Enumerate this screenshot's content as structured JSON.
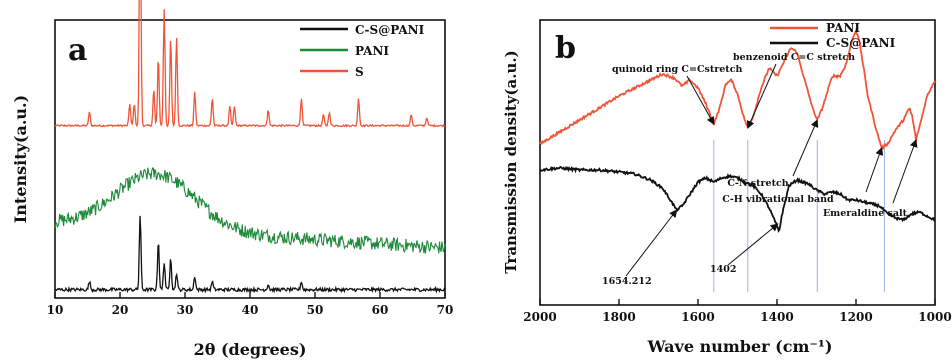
{
  "chart_data": [
    {
      "type": "line",
      "panel_label": "a",
      "xlabel": "2θ (degrees)",
      "ylabel": "Intensity(a.u.)",
      "xlim": [
        10,
        70
      ],
      "x_ticks": [
        10,
        20,
        30,
        40,
        50,
        60,
        70
      ],
      "legend_position": "top-right",
      "colors": {
        "C-S@PANI": "#111111",
        "PANI": "#1d8a3a",
        "S": "#f0553a"
      },
      "series": [
        {
          "name": "S",
          "baseline": 0.62,
          "peaks": [
            [
              15.3,
              0.05
            ],
            [
              21.5,
              0.08
            ],
            [
              22.2,
              0.08
            ],
            [
              23.1,
              0.85
            ],
            [
              25.2,
              0.13
            ],
            [
              25.9,
              0.25
            ],
            [
              26.8,
              0.42
            ],
            [
              27.8,
              0.32
            ],
            [
              28.7,
              0.32
            ],
            [
              31.5,
              0.12
            ],
            [
              34.2,
              0.1
            ],
            [
              36.9,
              0.07
            ],
            [
              37.6,
              0.07
            ],
            [
              42.8,
              0.06
            ],
            [
              47.9,
              0.1
            ],
            [
              51.3,
              0.04
            ],
            [
              52.2,
              0.05
            ],
            [
              56.7,
              0.1
            ],
            [
              64.8,
              0.04
            ],
            [
              67.2,
              0.03
            ]
          ]
        },
        {
          "name": "PANI",
          "form": "broad amorphous hump",
          "baseline_start": 0.27,
          "baseline_end": 0.18,
          "hump_center": 25.5,
          "hump_height": 0.2
        },
        {
          "name": "C-S@PANI",
          "baseline": 0.03,
          "peaks": [
            [
              15.3,
              0.03
            ],
            [
              23.1,
              0.27
            ],
            [
              25.9,
              0.18
            ],
            [
              26.8,
              0.1
            ],
            [
              27.8,
              0.12
            ],
            [
              28.7,
              0.06
            ],
            [
              31.5,
              0.05
            ],
            [
              34.2,
              0.03
            ],
            [
              42.8,
              0.02
            ],
            [
              47.9,
              0.03
            ]
          ]
        }
      ]
    },
    {
      "type": "line",
      "panel_label": "b",
      "xlabel": "Wave number (cm⁻¹)",
      "ylabel": "Transmission density(a.u.)",
      "xlim": [
        2000,
        1000
      ],
      "x_reversed": true,
      "x_ticks": [
        2000,
        1800,
        1600,
        1400,
        1200,
        1000
      ],
      "legend_position": "top-right",
      "colors": {
        "PANI": "#f0553a",
        "C-S@PANI": "#111111"
      },
      "series": [
        {
          "name": "PANI",
          "points": [
            [
              2000,
              0.38
            ],
            [
              1950,
              0.44
            ],
            [
              1900,
              0.5
            ],
            [
              1850,
              0.56
            ],
            [
              1800,
              0.62
            ],
            [
              1760,
              0.66
            ],
            [
              1720,
              0.7
            ],
            [
              1690,
              0.73
            ],
            [
              1660,
              0.71
            ],
            [
              1640,
              0.67
            ],
            [
              1620,
              0.7
            ],
            [
              1600,
              0.66
            ],
            [
              1580,
              0.58
            ],
            [
              1560,
              0.48
            ],
            [
              1545,
              0.56
            ],
            [
              1530,
              0.68
            ],
            [
              1515,
              0.7
            ],
            [
              1500,
              0.63
            ],
            [
              1485,
              0.52
            ],
            [
              1474,
              0.46
            ],
            [
              1460,
              0.52
            ],
            [
              1440,
              0.66
            ],
            [
              1420,
              0.76
            ],
            [
              1400,
              0.72
            ],
            [
              1380,
              0.8
            ],
            [
              1365,
              0.86
            ],
            [
              1350,
              0.84
            ],
            [
              1330,
              0.7
            ],
            [
              1310,
              0.56
            ],
            [
              1298,
              0.5
            ],
            [
              1285,
              0.56
            ],
            [
              1260,
              0.72
            ],
            [
              1240,
              0.72
            ],
            [
              1225,
              0.78
            ],
            [
              1210,
              0.9
            ],
            [
              1200,
              0.95
            ],
            [
              1190,
              0.88
            ],
            [
              1170,
              0.62
            ],
            [
              1150,
              0.46
            ],
            [
              1135,
              0.36
            ],
            [
              1120,
              0.38
            ],
            [
              1100,
              0.45
            ],
            [
              1080,
              0.5
            ],
            [
              1065,
              0.56
            ],
            [
              1058,
              0.52
            ],
            [
              1048,
              0.4
            ],
            [
              1035,
              0.5
            ],
            [
              1020,
              0.62
            ],
            [
              1000,
              0.7
            ]
          ]
        },
        {
          "name": "C-S@PANI",
          "points": [
            [
              2000,
              0.25
            ],
            [
              1950,
              0.26
            ],
            [
              1900,
              0.25
            ],
            [
              1850,
              0.25
            ],
            [
              1800,
              0.24
            ],
            [
              1760,
              0.23
            ],
            [
              1720,
              0.2
            ],
            [
              1690,
              0.16
            ],
            [
              1670,
              0.1
            ],
            [
              1654,
              0.05
            ],
            [
              1640,
              0.07
            ],
            [
              1620,
              0.13
            ],
            [
              1600,
              0.19
            ],
            [
              1580,
              0.21
            ],
            [
              1560,
              0.19
            ],
            [
              1540,
              0.21
            ],
            [
              1520,
              0.22
            ],
            [
              1500,
              0.21
            ],
            [
              1480,
              0.19
            ],
            [
              1460,
              0.17
            ],
            [
              1440,
              0.13
            ],
            [
              1420,
              0.06
            ],
            [
              1402,
              -0.02
            ],
            [
              1395,
              -0.06
            ],
            [
              1388,
              0.02
            ],
            [
              1370,
              0.17
            ],
            [
              1350,
              0.2
            ],
            [
              1320,
              0.18
            ],
            [
              1300,
              0.15
            ],
            [
              1280,
              0.13
            ],
            [
              1260,
              0.14
            ],
            [
              1240,
              0.13
            ],
            [
              1220,
              0.1
            ],
            [
              1200,
              0.1
            ],
            [
              1180,
              0.09
            ],
            [
              1160,
              0.08
            ],
            [
              1140,
              0.07
            ],
            [
              1120,
              0.03
            ],
            [
              1100,
              0.01
            ],
            [
              1080,
              0.0
            ],
            [
              1060,
              0.03
            ],
            [
              1040,
              0.04
            ],
            [
              1020,
              0.02
            ],
            [
              1000,
              0.0
            ]
          ]
        }
      ],
      "reference_lines": [
        1560,
        1474,
        1298,
        1128
      ],
      "annotations": [
        {
          "text": "quinoid ring C=Cstretch",
          "target": [
            1560,
            0.48
          ]
        },
        {
          "text": "benzenoid C=C stretch",
          "target": [
            1474,
            0.46
          ]
        },
        {
          "text": "C-N stretch",
          "target": [
            1298,
            0.5
          ]
        },
        {
          "text": "C-H vibrational band",
          "target": [
            1135,
            0.36
          ]
        },
        {
          "text": "Emeraldine salt",
          "target": [
            1048,
            0.4
          ]
        },
        {
          "text": "1654.212",
          "target": [
            1654,
            0.05
          ]
        },
        {
          "text": "1402",
          "target": [
            1398,
            -0.02
          ]
        }
      ]
    }
  ]
}
